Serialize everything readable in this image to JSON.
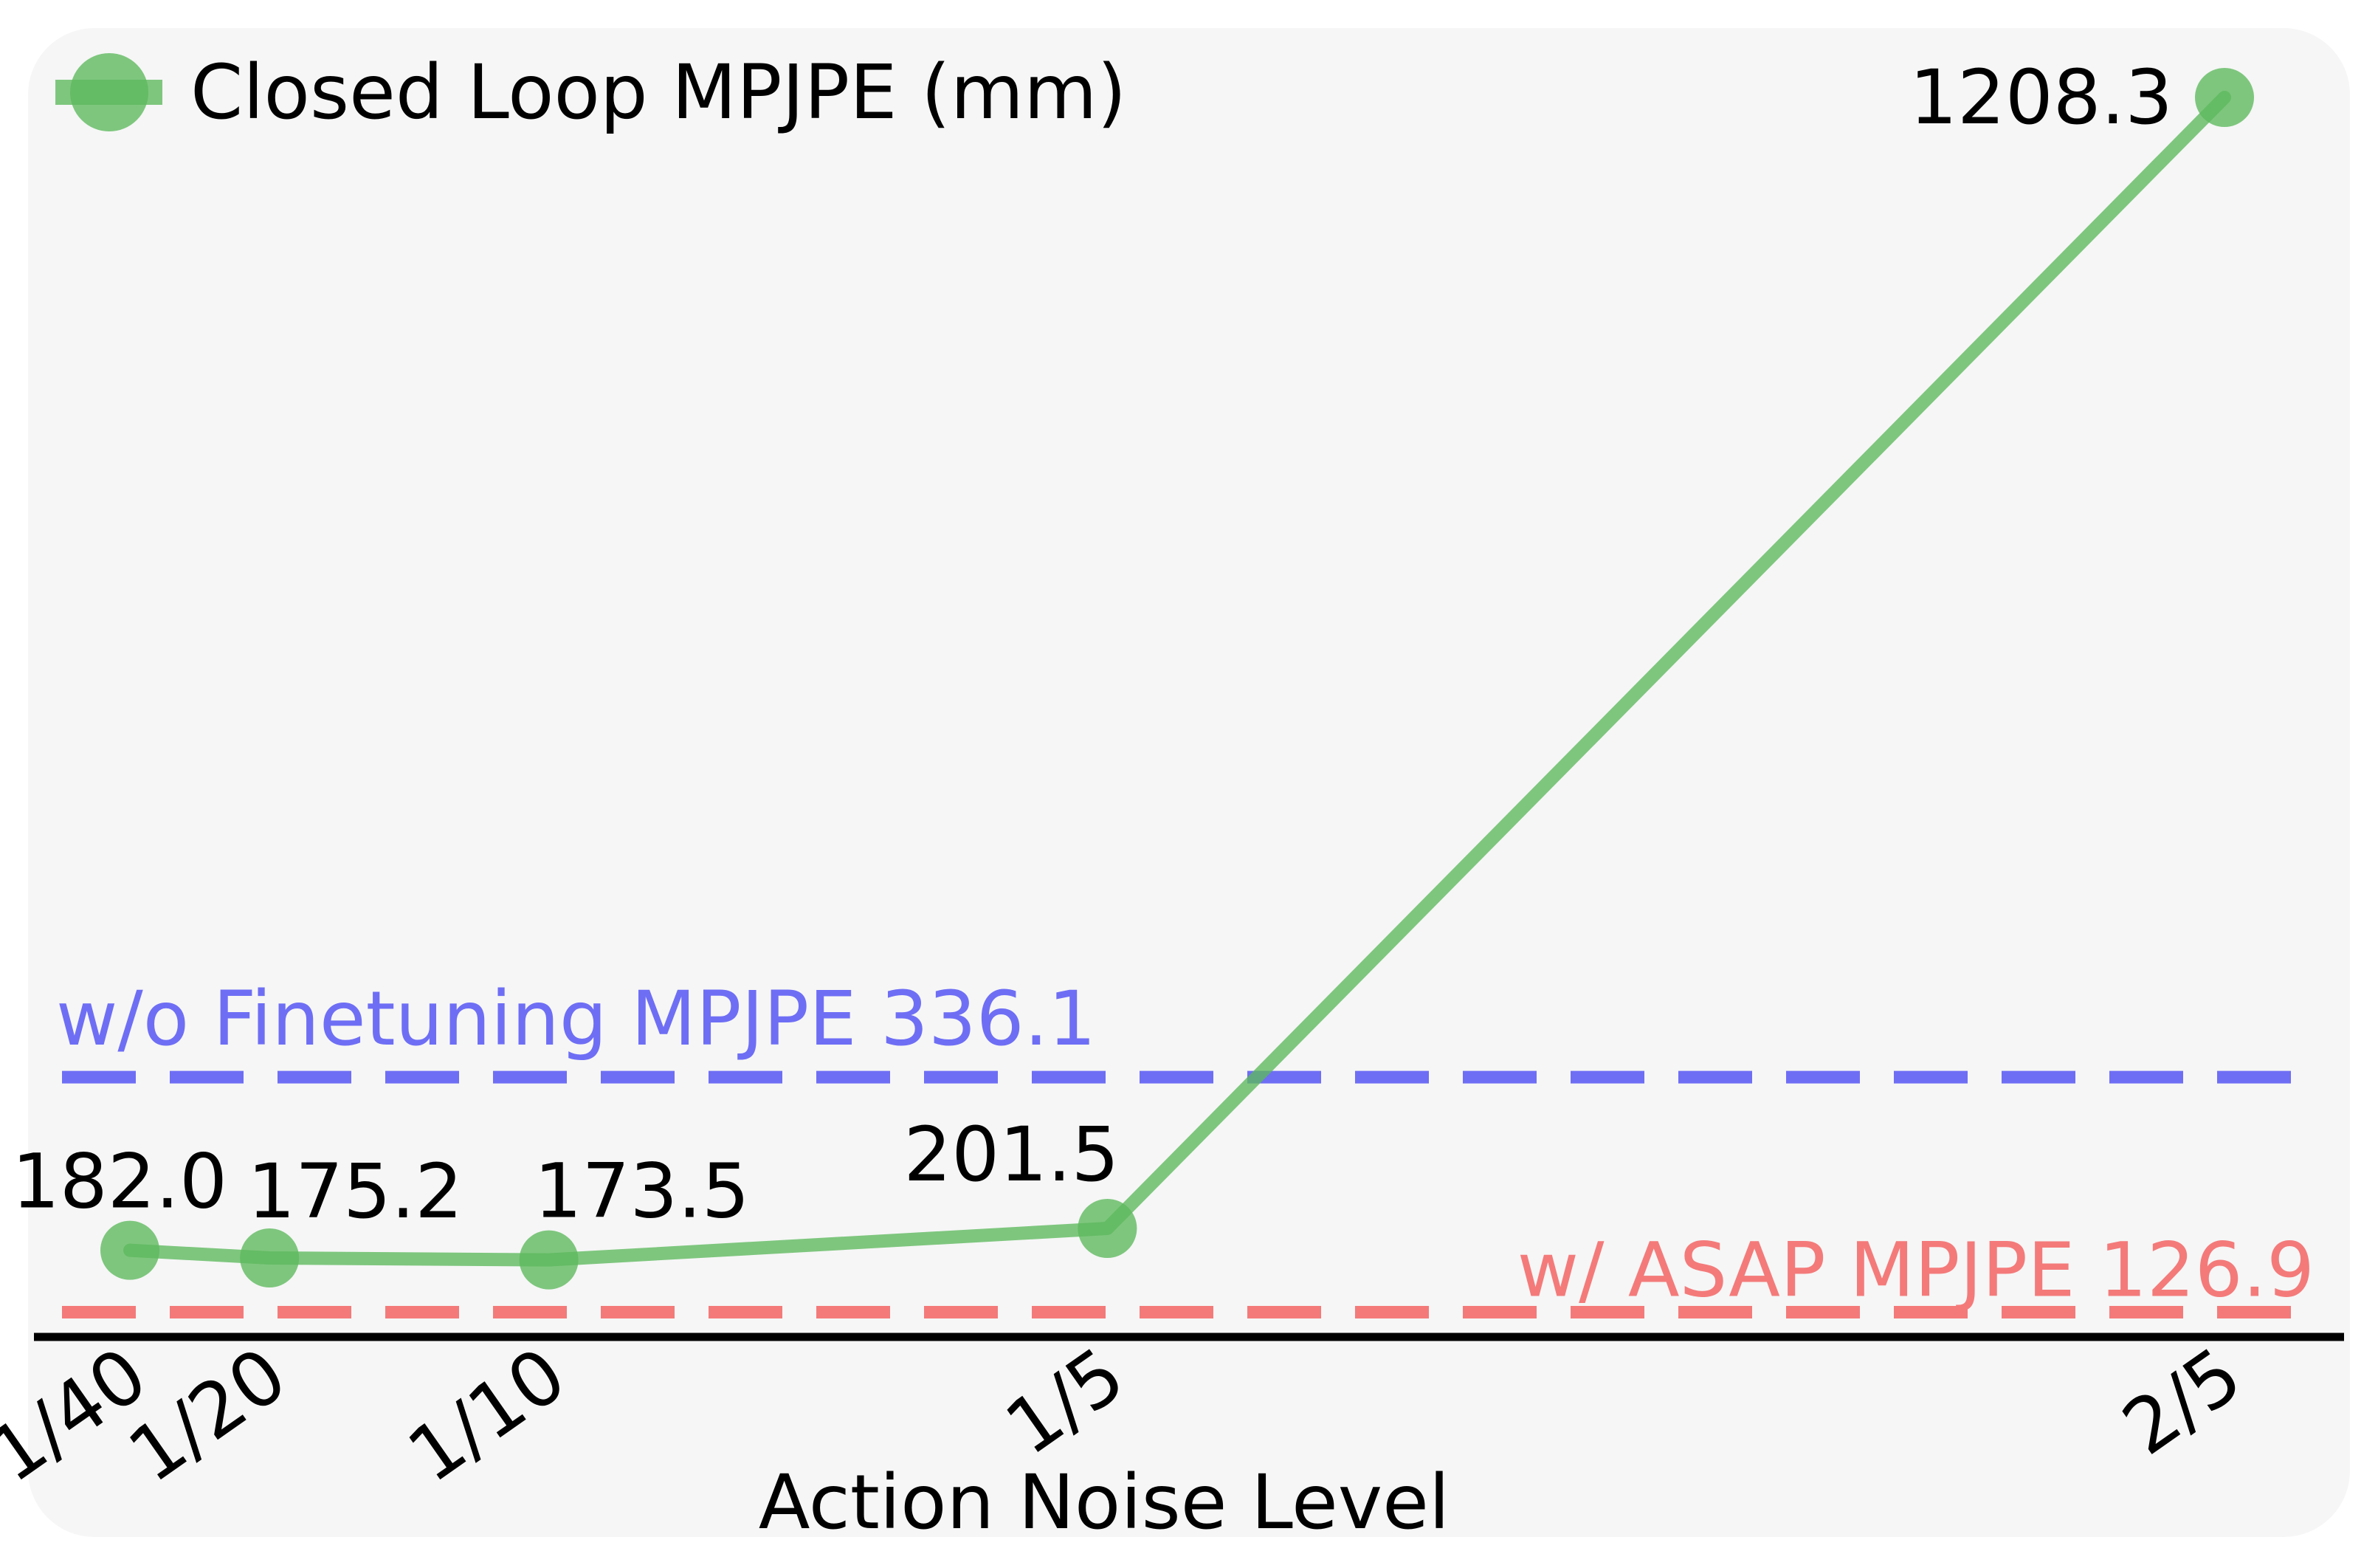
{
  "chart_data": {
    "type": "line",
    "title": "",
    "xlabel": "Action Noise Level",
    "ylabel": "",
    "categories": [
      "1/40",
      "1/20",
      "1/10",
      "1/5",
      "2/5"
    ],
    "x": [
      0.025,
      0.05,
      0.1,
      0.2,
      0.4
    ],
    "x_scale": "linear",
    "series": [
      {
        "name": "Closed Loop MPJPE (mm)",
        "color": "#5cb85c",
        "values": [
          182.0,
          175.2,
          173.5,
          201.5,
          1208.3
        ],
        "value_labels": [
          "182.0",
          "175.2",
          "173.5",
          "201.5",
          "1208.3"
        ]
      }
    ],
    "reference_lines": [
      {
        "label": "w/o Finetuning MPJPE 336.1",
        "value": 336.1,
        "color": "#6e6ef5",
        "style": "dashed"
      },
      {
        "label": "w/ ASAP MPJPE 126.9",
        "value": 126.9,
        "color": "#f47a7a",
        "style": "dashed"
      }
    ],
    "legend": {
      "placement": "top-left"
    },
    "grid": false,
    "y_axis_visible": false,
    "background_color": "#f6f6f6",
    "axis_color": "#000000"
  }
}
